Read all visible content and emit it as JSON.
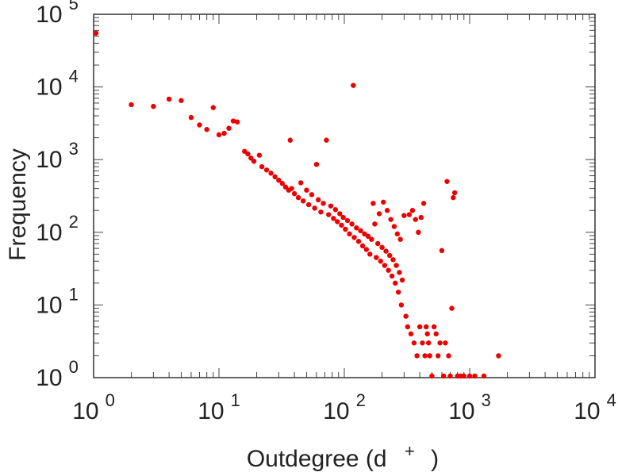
{
  "chart_data": {
    "type": "scatter",
    "xlabel_main": "Outdegree (d",
    "xlabel_sup": "+",
    "xlabel_close": ")",
    "ylabel": "Frequency",
    "x_scale": "log",
    "y_scale": "log",
    "xlim": [
      1,
      10000
    ],
    "ylim": [
      1,
      100000
    ],
    "grid": false,
    "legend": "none",
    "point_color": "#ee0000",
    "x_ticks": [
      {
        "base": "10",
        "exp": "0"
      },
      {
        "base": "10",
        "exp": "1"
      },
      {
        "base": "10",
        "exp": "2"
      },
      {
        "base": "10",
        "exp": "3"
      },
      {
        "base": "10",
        "exp": "4"
      }
    ],
    "y_ticks": [
      {
        "base": "10",
        "exp": "0"
      },
      {
        "base": "10",
        "exp": "1"
      },
      {
        "base": "10",
        "exp": "2"
      },
      {
        "base": "10",
        "exp": "3"
      },
      {
        "base": "10",
        "exp": "4"
      },
      {
        "base": "10",
        "exp": "5"
      }
    ],
    "points": [
      [
        1,
        55000
      ],
      [
        2,
        5700
      ],
      [
        3,
        5400
      ],
      [
        4,
        6800
      ],
      [
        5,
        6500
      ],
      [
        6,
        3800
      ],
      [
        7,
        3000
      ],
      [
        8,
        2600
      ],
      [
        9,
        5200
      ],
      [
        10,
        2200
      ],
      [
        11,
        2300
      ],
      [
        12,
        2700
      ],
      [
        13,
        3400
      ],
      [
        14,
        3300
      ],
      [
        16,
        1300
      ],
      [
        17,
        1200
      ],
      [
        18,
        1050
      ],
      [
        19,
        950
      ],
      [
        21,
        1150
      ],
      [
        22,
        800
      ],
      [
        24,
        720
      ],
      [
        26,
        650
      ],
      [
        28,
        580
      ],
      [
        30,
        520
      ],
      [
        32,
        470
      ],
      [
        34,
        420
      ],
      [
        36,
        380
      ],
      [
        37,
        1850
      ],
      [
        38,
        400
      ],
      [
        40,
        340
      ],
      [
        43,
        300
      ],
      [
        45,
        480
      ],
      [
        47,
        270
      ],
      [
        50,
        380
      ],
      [
        52,
        240
      ],
      [
        55,
        330
      ],
      [
        58,
        215
      ],
      [
        60,
        860
      ],
      [
        62,
        280
      ],
      [
        65,
        190
      ],
      [
        68,
        250
      ],
      [
        72,
        1850
      ],
      [
        75,
        175
      ],
      [
        78,
        230
      ],
      [
        82,
        155
      ],
      [
        85,
        205
      ],
      [
        88,
        140
      ],
      [
        92,
        180
      ],
      [
        95,
        125
      ],
      [
        98,
        160
      ],
      [
        102,
        110
      ],
      [
        106,
        145
      ],
      [
        110,
        95
      ],
      [
        115,
        130
      ],
      [
        118,
        10500
      ],
      [
        120,
        85
      ],
      [
        125,
        115
      ],
      [
        130,
        75
      ],
      [
        135,
        105
      ],
      [
        140,
        65
      ],
      [
        145,
        95
      ],
      [
        150,
        58
      ],
      [
        155,
        88
      ],
      [
        160,
        50
      ],
      [
        165,
        80
      ],
      [
        170,
        250
      ],
      [
        175,
        130
      ],
      [
        180,
        45
      ],
      [
        185,
        70
      ],
      [
        190,
        180
      ],
      [
        195,
        40
      ],
      [
        200,
        62
      ],
      [
        205,
        260
      ],
      [
        210,
        35
      ],
      [
        215,
        55
      ],
      [
        220,
        200
      ],
      [
        225,
        30
      ],
      [
        230,
        48
      ],
      [
        235,
        150
      ],
      [
        240,
        25
      ],
      [
        245,
        42
      ],
      [
        250,
        120
      ],
      [
        255,
        20
      ],
      [
        260,
        35
      ],
      [
        265,
        95
      ],
      [
        270,
        15
      ],
      [
        275,
        28
      ],
      [
        280,
        80
      ],
      [
        285,
        10
      ],
      [
        290,
        22
      ],
      [
        300,
        170
      ],
      [
        310,
        7
      ],
      [
        320,
        5
      ],
      [
        330,
        175
      ],
      [
        340,
        4
      ],
      [
        350,
        200
      ],
      [
        360,
        3
      ],
      [
        370,
        150
      ],
      [
        380,
        2
      ],
      [
        390,
        100
      ],
      [
        400,
        5
      ],
      [
        410,
        160
      ],
      [
        420,
        3
      ],
      [
        430,
        250
      ],
      [
        440,
        2
      ],
      [
        450,
        5
      ],
      [
        460,
        4
      ],
      [
        470,
        3
      ],
      [
        480,
        2
      ],
      [
        500,
        1
      ],
      [
        520,
        5
      ],
      [
        540,
        4
      ],
      [
        560,
        2
      ],
      [
        580,
        3
      ],
      [
        600,
        56
      ],
      [
        620,
        1
      ],
      [
        640,
        3
      ],
      [
        660,
        500
      ],
      [
        680,
        2
      ],
      [
        700,
        1
      ],
      [
        720,
        9
      ],
      [
        740,
        300
      ],
      [
        760,
        350
      ],
      [
        800,
        1
      ],
      [
        850,
        1
      ],
      [
        900,
        1
      ],
      [
        1000,
        1
      ],
      [
        1100,
        1
      ],
      [
        1300,
        1
      ],
      [
        1700,
        2
      ]
    ]
  }
}
